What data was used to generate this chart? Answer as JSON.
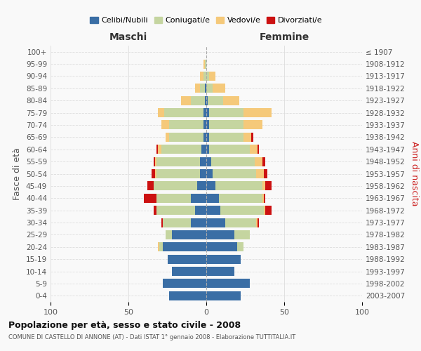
{
  "age_groups": [
    "0-4",
    "5-9",
    "10-14",
    "15-19",
    "20-24",
    "25-29",
    "30-34",
    "35-39",
    "40-44",
    "45-49",
    "50-54",
    "55-59",
    "60-64",
    "65-69",
    "70-74",
    "75-79",
    "80-84",
    "85-89",
    "90-94",
    "95-99",
    "100+"
  ],
  "birth_years": [
    "2003-2007",
    "1998-2002",
    "1993-1997",
    "1988-1992",
    "1983-1987",
    "1978-1982",
    "1973-1977",
    "1968-1972",
    "1963-1967",
    "1958-1962",
    "1953-1957",
    "1948-1952",
    "1943-1947",
    "1938-1942",
    "1933-1937",
    "1928-1932",
    "1923-1927",
    "1918-1922",
    "1913-1917",
    "1908-1912",
    "≤ 1907"
  ],
  "colors": {
    "celibi": "#3a6ea5",
    "coniugati": "#c5d5a0",
    "vedovi": "#f5c97a",
    "divorziati": "#cc1111"
  },
  "maschi": {
    "celibi": [
      24,
      28,
      22,
      25,
      28,
      22,
      10,
      7,
      10,
      6,
      4,
      4,
      3,
      2,
      2,
      2,
      1,
      1,
      0,
      0,
      0
    ],
    "coniugati": [
      0,
      0,
      0,
      0,
      2,
      4,
      18,
      25,
      22,
      28,
      28,
      28,
      26,
      22,
      22,
      25,
      9,
      3,
      2,
      1,
      0
    ],
    "vedovi": [
      0,
      0,
      0,
      0,
      1,
      0,
      0,
      0,
      0,
      0,
      1,
      1,
      2,
      2,
      5,
      4,
      6,
      3,
      2,
      1,
      0
    ],
    "divorziati": [
      0,
      0,
      0,
      0,
      0,
      0,
      1,
      2,
      8,
      4,
      2,
      1,
      1,
      0,
      0,
      0,
      0,
      0,
      0,
      0,
      0
    ]
  },
  "femmine": {
    "celibi": [
      22,
      28,
      18,
      22,
      20,
      18,
      12,
      9,
      8,
      6,
      4,
      3,
      2,
      2,
      2,
      2,
      1,
      0,
      0,
      0,
      0
    ],
    "coniugati": [
      0,
      0,
      0,
      0,
      4,
      10,
      20,
      28,
      28,
      30,
      28,
      28,
      26,
      22,
      22,
      22,
      10,
      4,
      2,
      0,
      0
    ],
    "vedovi": [
      0,
      0,
      0,
      0,
      0,
      0,
      1,
      1,
      1,
      2,
      5,
      5,
      5,
      5,
      12,
      18,
      10,
      8,
      4,
      0,
      0
    ],
    "divorziati": [
      0,
      0,
      0,
      0,
      0,
      0,
      1,
      4,
      1,
      4,
      2,
      2,
      1,
      1,
      0,
      0,
      0,
      0,
      0,
      0,
      0
    ]
  },
  "xlim": 100,
  "title": "Popolazione per età, sesso e stato civile - 2008",
  "subtitle": "COMUNE DI CASTELLO DI ANNONE (AT) - Dati ISTAT 1° gennaio 2008 - Elaborazione TUTTITALIA.IT",
  "ylabel": "Fasce di età",
  "ylabel_right": "Anni di nascita",
  "xlabel_left": "Maschi",
  "xlabel_right": "Femmine",
  "legend_labels": [
    "Celibi/Nubili",
    "Coniugati/e",
    "Vedovi/e",
    "Divorziati/e"
  ],
  "bg_color": "#f9f9f9"
}
